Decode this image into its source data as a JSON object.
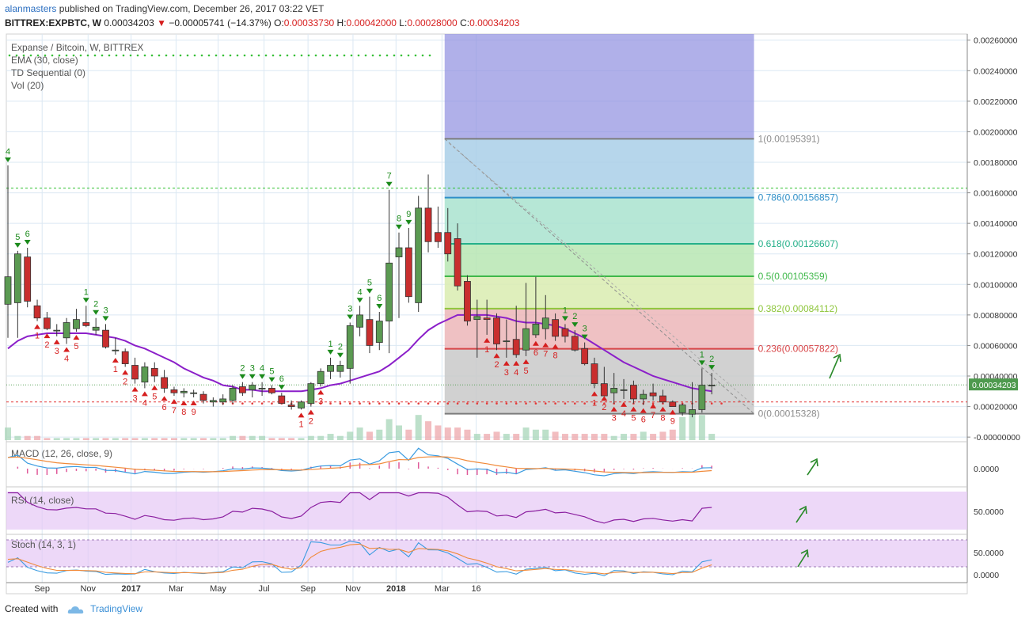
{
  "header": {
    "author": "alanmasters",
    "published": "published on TradingView.com, December 26, 2017 03:22 VET",
    "symbol": "BITTREX:EXPBTC, W",
    "last_price": "0.00034203",
    "change": "−0.00005741 (−14.37%)",
    "o_label": "O:",
    "o_value": "0.00033730",
    "h_label": "H:",
    "h_value": "0.00042000",
    "l_label": "L:",
    "l_value": "0.00028000",
    "c_label": "C:",
    "c_value": "0.00034203"
  },
  "footer": {
    "created_with": "Created with",
    "brand": "TradingView"
  },
  "chart_data": {
    "type": "candlestick",
    "legend": {
      "title": "Expanse / Bitcoin, W, BITTREX",
      "indicators": [
        "EMA (30, close)",
        "TD Sequential (0)",
        "Vol (20)"
      ]
    },
    "x_ticks": [
      {
        "label": "Sep",
        "i": 3.5
      },
      {
        "label": "Nov",
        "i": 8.2
      },
      {
        "label": "2017",
        "i": 12.6
      },
      {
        "label": "Mar",
        "i": 17.2
      },
      {
        "label": "May",
        "i": 21.5
      },
      {
        "label": "Jul",
        "i": 26.2
      },
      {
        "label": "Sep",
        "i": 30.7
      },
      {
        "label": "Nov",
        "i": 35.3
      },
      {
        "label": "2018",
        "i": 39.7
      },
      {
        "label": "Mar",
        "i": 44.4
      },
      {
        "label": "16",
        "i": 47.9
      }
    ],
    "ylim": [
      -2e-05,
      0.00264
    ],
    "y_ticks": [
      "0.00260000",
      "0.00240000",
      "0.00220000",
      "0.00200000",
      "0.00180000",
      "0.00160000",
      "0.00140000",
      "0.00120000",
      "0.00100000",
      "0.00080000",
      "0.00060000",
      "0.00040000",
      "0.00020000",
      "-0.00000000"
    ],
    "y_tick_values": [
      0.0026,
      0.0024,
      0.0022,
      0.002,
      0.0018,
      0.0016,
      0.0014,
      0.0012,
      0.001,
      0.0008,
      0.0006,
      0.0004,
      0.0002,
      0
    ],
    "candles": [
      {
        "o": 0.00087,
        "h": 0.00178,
        "l": 0.00065,
        "c": 0.00105,
        "v": 6e-05
      },
      {
        "o": 0.00088,
        "h": 0.00122,
        "l": 0.00065,
        "c": 0.0012,
        "v": 2e-05
      },
      {
        "o": 0.00118,
        "h": 0.00124,
        "l": 0.00085,
        "c": 0.00089,
        "v": 2e-05
      },
      {
        "o": 0.00086,
        "h": 0.0009,
        "l": 0.00076,
        "c": 0.00078,
        "v": 2e-05
      },
      {
        "o": 0.00078,
        "h": 0.00082,
        "l": 0.0007,
        "c": 0.00071,
        "v": 1e-05
      },
      {
        "o": 0.0007,
        "h": 0.00074,
        "l": 0.00066,
        "c": 0.0007,
        "v": 1e-05
      },
      {
        "o": 0.00065,
        "h": 0.00078,
        "l": 0.00061,
        "c": 0.00075,
        "v": 1e-05
      },
      {
        "o": 0.00071,
        "h": 0.00084,
        "l": 0.00069,
        "c": 0.00077,
        "v": 1e-05
      },
      {
        "o": 0.00075,
        "h": 0.00086,
        "l": 0.00072,
        "c": 0.00073,
        "v": 1e-05
      },
      {
        "o": 0.0007,
        "h": 0.00078,
        "l": 0.00067,
        "c": 0.00072,
        "v": 1e-05
      },
      {
        "o": 0.0007,
        "h": 0.00074,
        "l": 0.00058,
        "c": 0.00059,
        "v": 1e-05
      },
      {
        "o": 0.00057,
        "h": 0.00065,
        "l": 0.00054,
        "c": 0.00057,
        "v": 1e-05
      },
      {
        "o": 0.00056,
        "h": 0.00058,
        "l": 0.00046,
        "c": 0.00048,
        "v": 1e-05
      },
      {
        "o": 0.00047,
        "h": 0.00052,
        "l": 0.00035,
        "c": 0.00038,
        "v": 1e-05
      },
      {
        "o": 0.00036,
        "h": 0.00049,
        "l": 0.00032,
        "c": 0.00046,
        "v": 1e-05
      },
      {
        "o": 0.00045,
        "h": 0.00049,
        "l": 0.00036,
        "c": 0.0004,
        "v": 1e-05
      },
      {
        "o": 0.00039,
        "h": 0.00044,
        "l": 0.00029,
        "c": 0.00032,
        "v": 1e-05
      },
      {
        "o": 0.00031,
        "h": 0.00033,
        "l": 0.00027,
        "c": 0.00029,
        "v": 1e-05
      },
      {
        "o": 0.00029,
        "h": 0.00032,
        "l": 0.00026,
        "c": 0.0003,
        "v": 1e-05
      },
      {
        "o": 0.00029,
        "h": 0.00031,
        "l": 0.00026,
        "c": 0.00029,
        "v": 1e-05
      },
      {
        "o": 0.00028,
        "h": 0.0003,
        "l": 0.00022,
        "c": 0.00024,
        "v": 1e-05
      },
      {
        "o": 0.00023,
        "h": 0.00026,
        "l": 0.0002,
        "c": 0.00024,
        "v": 1e-05
      },
      {
        "o": 0.00023,
        "h": 0.00028,
        "l": 0.00021,
        "c": 0.00025,
        "v": 1e-05
      },
      {
        "o": 0.00024,
        "h": 0.00034,
        "l": 0.00022,
        "c": 0.00032,
        "v": 2e-05
      },
      {
        "o": 0.00033,
        "h": 0.00036,
        "l": 0.00027,
        "c": 0.00029,
        "v": 2e-05
      },
      {
        "o": 0.00031,
        "h": 0.00036,
        "l": 0.00026,
        "c": 0.00034,
        "v": 2e-05
      },
      {
        "o": 0.00032,
        "h": 0.00036,
        "l": 0.00027,
        "c": 0.00032,
        "v": 2e-05
      },
      {
        "o": 0.00032,
        "h": 0.00034,
        "l": 0.00028,
        "c": 0.00029,
        "v": 1e-05
      },
      {
        "o": 0.00027,
        "h": 0.00029,
        "l": 0.00022,
        "c": 0.00022,
        "v": 1e-05
      },
      {
        "o": 0.00021,
        "h": 0.00024,
        "l": 0.00018,
        "c": 0.0002,
        "v": 1e-05
      },
      {
        "o": 0.00019,
        "h": 0.00024,
        "l": 0.00018,
        "c": 0.00023,
        "v": 1e-05
      },
      {
        "o": 0.00022,
        "h": 0.00036,
        "l": 0.0002,
        "c": 0.00035,
        "v": 2e-05
      },
      {
        "o": 0.00035,
        "h": 0.00045,
        "l": 0.00033,
        "c": 0.00043,
        "v": 2e-05
      },
      {
        "o": 0.00043,
        "h": 0.00052,
        "l": 0.00038,
        "c": 0.00047,
        "v": 3e-05
      },
      {
        "o": 0.00043,
        "h": 0.0005,
        "l": 0.00039,
        "c": 0.00047,
        "v": 2e-05
      },
      {
        "o": 0.00045,
        "h": 0.00075,
        "l": 0.00035,
        "c": 0.00073,
        "v": 4e-05
      },
      {
        "o": 0.00072,
        "h": 0.00086,
        "l": 0.00066,
        "c": 0.0008,
        "v": 6e-05
      },
      {
        "o": 0.00077,
        "h": 0.00092,
        "l": 0.00055,
        "c": 0.0006,
        "v": 4e-05
      },
      {
        "o": 0.00062,
        "h": 0.00082,
        "l": 0.00057,
        "c": 0.00076,
        "v": 5e-05
      },
      {
        "o": 0.00076,
        "h": 0.00162,
        "l": 0.00055,
        "c": 0.00114,
        "v": 0.0001
      },
      {
        "o": 0.00118,
        "h": 0.00134,
        "l": 0.00078,
        "c": 0.00124,
        "v": 7e-05
      },
      {
        "o": 0.00124,
        "h": 0.00137,
        "l": 0.00088,
        "c": 0.00092,
        "v": 5e-05
      },
      {
        "o": 0.00088,
        "h": 0.00158,
        "l": 0.00082,
        "c": 0.0015,
        "v": 0.00012
      },
      {
        "o": 0.0015,
        "h": 0.00172,
        "l": 0.00121,
        "c": 0.00128,
        "v": 9e-05
      },
      {
        "o": 0.00134,
        "h": 0.00151,
        "l": 0.00124,
        "c": 0.00128,
        "v": 7e-05
      },
      {
        "o": 0.00134,
        "h": 0.0015,
        "l": 0.00115,
        "c": 0.0012,
        "v": 6e-05
      },
      {
        "o": 0.0013,
        "h": 0.0014,
        "l": 0.00096,
        "c": 0.00099,
        "v": 6e-05
      },
      {
        "o": 0.00102,
        "h": 0.00106,
        "l": 0.00073,
        "c": 0.00076,
        "v": 5e-05
      },
      {
        "o": 0.00077,
        "h": 0.0009,
        "l": 0.00052,
        "c": 0.00079,
        "v": 3e-05
      },
      {
        "o": 0.00078,
        "h": 0.0009,
        "l": 0.00067,
        "c": 0.00077,
        "v": 3e-05
      },
      {
        "o": 0.00078,
        "h": 0.00081,
        "l": 0.00057,
        "c": 0.00061,
        "v": 4e-05
      },
      {
        "o": 0.00063,
        "h": 0.00077,
        "l": 0.00052,
        "c": 0.00063,
        "v": 3e-05
      },
      {
        "o": 0.00064,
        "h": 0.00086,
        "l": 0.00052,
        "c": 0.00054,
        "v": 3e-05
      },
      {
        "o": 0.00057,
        "h": 0.00101,
        "l": 0.00053,
        "c": 0.00071,
        "v": 6e-05
      },
      {
        "o": 0.00067,
        "h": 0.00105,
        "l": 0.00065,
        "c": 0.00074,
        "v": 5e-05
      },
      {
        "o": 0.00071,
        "h": 0.00093,
        "l": 0.00064,
        "c": 0.00078,
        "v": 5e-05
      },
      {
        "o": 0.00077,
        "h": 0.00081,
        "l": 0.00063,
        "c": 0.00066,
        "v": 4e-05
      },
      {
        "o": 0.00071,
        "h": 0.00074,
        "l": 0.00062,
        "c": 0.00066,
        "v": 3e-05
      },
      {
        "o": 0.00066,
        "h": 0.0007,
        "l": 0.00056,
        "c": 0.00057,
        "v": 3e-05
      },
      {
        "o": 0.00058,
        "h": 0.00062,
        "l": 0.00047,
        "c": 0.00048,
        "v": 3e-05
      },
      {
        "o": 0.00048,
        "h": 0.00052,
        "l": 0.00032,
        "c": 0.00035,
        "v": 3e-05
      },
      {
        "o": 0.00035,
        "h": 0.00046,
        "l": 0.00029,
        "c": 0.00027,
        "v": 3e-05
      },
      {
        "o": 0.00029,
        "h": 0.00042,
        "l": 0.00022,
        "c": 0.00032,
        "v": 2e-05
      },
      {
        "o": 0.00031,
        "h": 0.00038,
        "l": 0.00025,
        "c": 0.00031,
        "v": 3e-05
      },
      {
        "o": 0.00034,
        "h": 0.00037,
        "l": 0.00022,
        "c": 0.00025,
        "v": 3e-05
      },
      {
        "o": 0.00025,
        "h": 0.00031,
        "l": 0.00021,
        "c": 0.00028,
        "v": 4e-05
      },
      {
        "o": 0.00029,
        "h": 0.00035,
        "l": 0.00024,
        "c": 0.00027,
        "v": 3e-05
      },
      {
        "o": 0.00027,
        "h": 0.00031,
        "l": 0.00022,
        "c": 0.00023,
        "v": 4e-05
      },
      {
        "o": 0.00023,
        "h": 0.00024,
        "l": 0.0002,
        "c": 0.0002,
        "v": 5e-05
      },
      {
        "o": 0.00016,
        "h": 0.00022,
        "l": 0.00014,
        "c": 0.00021,
        "v": 0.00011
      },
      {
        "o": 0.00015,
        "h": 0.00036,
        "l": 0.00013,
        "c": 0.00018,
        "v": 0.00014
      },
      {
        "o": 0.00018,
        "h": 0.00045,
        "l": 0.00016,
        "c": 0.00034,
        "v": 0.00012
      },
      {
        "o": 0.00034,
        "h": 0.00042,
        "l": 0.00028,
        "c": 0.00034,
        "v": 3e-05
      }
    ],
    "ema": [
      0.00058,
      0.00063,
      0.00066,
      0.00067,
      0.00068,
      0.00068,
      0.00068,
      0.00068,
      0.00068,
      0.00067,
      0.00066,
      0.00065,
      0.00063,
      0.0006,
      0.00058,
      0.00055,
      0.00052,
      0.00049,
      0.00045,
      0.00042,
      0.00039,
      0.00037,
      0.00034,
      0.00033,
      0.00031,
      0.00031,
      0.0003,
      0.0003,
      0.0003,
      0.0003,
      0.0003,
      0.00031,
      0.00032,
      0.00034,
      0.00035,
      0.00037,
      0.00039,
      0.00041,
      0.00043,
      0.00047,
      0.00052,
      0.00057,
      0.00064,
      0.0007,
      0.00074,
      0.00077,
      0.0008,
      0.0008,
      0.0008,
      0.0008,
      0.00079,
      0.00078,
      0.00076,
      0.00075,
      0.00075,
      0.00074,
      0.00073,
      0.00071,
      0.00068,
      0.00065,
      0.00061,
      0.00057,
      0.00053,
      0.00049,
      0.00046,
      0.00043,
      0.0004,
      0.00038,
      0.00036,
      0.00034,
      0.00032,
      0.00031,
      0.0003
    ],
    "td_labels": [
      {
        "i": 0,
        "t": "4",
        "up": true
      },
      {
        "i": 1,
        "t": "5",
        "up": true
      },
      {
        "i": 2,
        "t": "6",
        "up": true
      },
      {
        "i": 3,
        "t": "1",
        "up": false
      },
      {
        "i": 4,
        "t": "2",
        "up": false
      },
      {
        "i": 5,
        "t": "3",
        "up": false
      },
      {
        "i": 6,
        "t": "4",
        "up": false
      },
      {
        "i": 7,
        "t": "5",
        "up": false
      },
      {
        "i": 8,
        "t": "1",
        "up": true
      },
      {
        "i": 9,
        "t": "2",
        "up": true
      },
      {
        "i": 10,
        "t": "3",
        "up": true
      },
      {
        "i": 11,
        "t": "1",
        "up": false
      },
      {
        "i": 12,
        "t": "2",
        "up": false
      },
      {
        "i": 13,
        "t": "3",
        "up": false
      },
      {
        "i": 14,
        "t": "4",
        "up": false
      },
      {
        "i": 15,
        "t": "5",
        "up": false
      },
      {
        "i": 16,
        "t": "6",
        "up": false
      },
      {
        "i": 17,
        "t": "7",
        "up": false
      },
      {
        "i": 18,
        "t": "8",
        "up": false
      },
      {
        "i": 19,
        "t": "9",
        "up": false
      },
      {
        "i": 24,
        "t": "2",
        "up": true
      },
      {
        "i": 25,
        "t": "3",
        "up": true
      },
      {
        "i": 26,
        "t": "4",
        "up": true
      },
      {
        "i": 27,
        "t": "5",
        "up": true
      },
      {
        "i": 28,
        "t": "6",
        "up": true
      },
      {
        "i": 30,
        "t": "1",
        "up": false
      },
      {
        "i": 31,
        "t": "2",
        "up": false
      },
      {
        "i": 32,
        "t": "3",
        "up": false
      },
      {
        "i": 33,
        "t": "1",
        "up": true
      },
      {
        "i": 34,
        "t": "2",
        "up": true
      },
      {
        "i": 35,
        "t": "3",
        "up": true
      },
      {
        "i": 36,
        "t": "4",
        "up": true
      },
      {
        "i": 37,
        "t": "5",
        "up": true
      },
      {
        "i": 38,
        "t": "6",
        "up": true
      },
      {
        "i": 39,
        "t": "7",
        "up": true
      },
      {
        "i": 40,
        "t": "8",
        "up": true
      },
      {
        "i": 41,
        "t": "9",
        "up": true
      },
      {
        "i": 49,
        "t": "1",
        "up": false
      },
      {
        "i": 50,
        "t": "2",
        "up": false
      },
      {
        "i": 51,
        "t": "3",
        "up": false
      },
      {
        "i": 52,
        "t": "4",
        "up": false
      },
      {
        "i": 53,
        "t": "5",
        "up": false
      },
      {
        "i": 54,
        "t": "6",
        "up": false
      },
      {
        "i": 55,
        "t": "7",
        "up": false
      },
      {
        "i": 56,
        "t": "8",
        "up": false
      },
      {
        "i": 57,
        "t": "1",
        "up": true
      },
      {
        "i": 58,
        "t": "2",
        "up": true
      },
      {
        "i": 59,
        "t": "3",
        "up": true
      },
      {
        "i": 60,
        "t": "1",
        "up": false
      },
      {
        "i": 61,
        "t": "2",
        "up": false
      },
      {
        "i": 62,
        "t": "3",
        "up": false
      },
      {
        "i": 63,
        "t": "4",
        "up": false
      },
      {
        "i": 64,
        "t": "5",
        "up": false
      },
      {
        "i": 65,
        "t": "6",
        "up": false
      },
      {
        "i": 66,
        "t": "7",
        "up": false
      },
      {
        "i": 67,
        "t": "8",
        "up": false
      },
      {
        "i": 68,
        "t": "9",
        "up": false
      },
      {
        "i": 71,
        "t": "1",
        "up": true
      },
      {
        "i": 72,
        "t": "2",
        "up": true
      }
    ],
    "fib": {
      "start_i": 45,
      "end_i": 76,
      "levels": [
        {
          "r": "1",
          "price": 0.00195391,
          "label": "1(0.00195391)",
          "fill": "#c9c9c9",
          "line": "#7c7c7c",
          "text": "#8d8d8d"
        },
        {
          "r": "0.786",
          "price": 0.00156857,
          "label": "0.786(0.00156857)",
          "fill": "#a9cfe8",
          "line": "#2f8fc8",
          "text": "#2f8fc8"
        },
        {
          "r": "0.618",
          "price": 0.00126607,
          "label": "0.618(0.00126607)",
          "fill": "#a9e3cf",
          "line": "#25b08a",
          "text": "#25b08a"
        },
        {
          "r": "0.5",
          "price": 0.00105359,
          "label": "0.5(0.00105359)",
          "fill": "#b7e6b3",
          "line": "#3fb84a",
          "text": "#3fb84a"
        },
        {
          "r": "0.382",
          "price": 0.00084112,
          "label": "0.382(0.00084112)",
          "fill": "#d9ecb0",
          "line": "#8ec63c",
          "text": "#8ec63c"
        },
        {
          "r": "0.236",
          "price": 0.00057822,
          "label": "0.236(0.00057822)",
          "fill": "#ecb6b8",
          "line": "#d84548",
          "text": "#d84548"
        },
        {
          "r": "0",
          "price": 0.00015328,
          "label": "0(0.00015328)",
          "fill": "#c9c9c9",
          "line": "#7c7c7c",
          "text": "#8d8d8d"
        }
      ]
    },
    "blue_zone": {
      "start_i": 45,
      "end_i": 76,
      "bottom": 0.00195391,
      "top": 0.00264
    },
    "green_line": 0.00163,
    "red_line": 0.00023,
    "price_line": 0.00034203,
    "price_tag": "0.00034203",
    "macd": {
      "label": "MACD (12, 26, close, 9)",
      "tick": "0.0000"
    },
    "rsi": {
      "label": "RSI (14, close)",
      "tick": "50.0000"
    },
    "stoch": {
      "label": "Stoch (14, 3, 1)",
      "tick_top": "50.0000",
      "tick_bottom": "0.0000"
    },
    "colors": {
      "up_body": "#5b9a52",
      "down_body": "#c92e2e",
      "ema": "#8b1fc9",
      "td_up": "#1b8a1b",
      "td_down": "#d61f1f",
      "macd_line": "#3a9be0",
      "signal_line": "#f08a3a",
      "rsi_line": "#8b1fa0",
      "stoch_k": "#3a9be0",
      "stoch_d": "#f08a3a",
      "panel_fill": "#e5c8f5"
    }
  }
}
